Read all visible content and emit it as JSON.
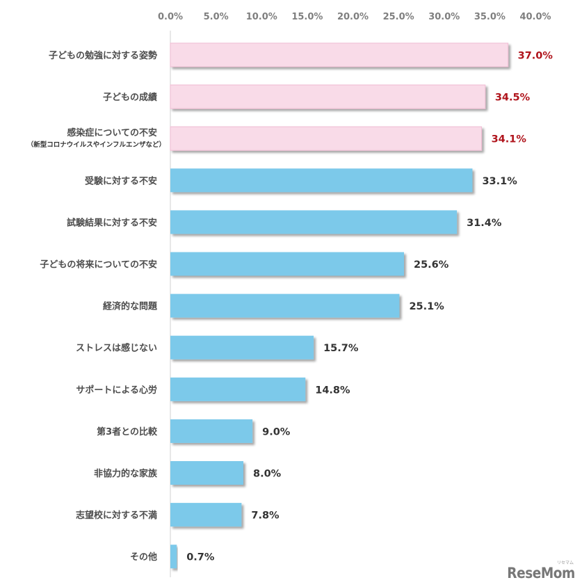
{
  "chart_data": {
    "type": "bar",
    "orientation": "horizontal",
    "xlim": [
      0,
      40
    ],
    "x_tick_labels": [
      "0.0%",
      "5.0%",
      "10.0%",
      "15.0%",
      "20.0%",
      "25.0%",
      "30.0%",
      "35.0%",
      "40.0%"
    ],
    "categories": [
      {
        "label": "子どもの勉強に対する姿勢",
        "sublabel": "",
        "value": 37.0,
        "value_label": "37.0%",
        "highlight": true
      },
      {
        "label": "子どもの成績",
        "sublabel": "",
        "value": 34.5,
        "value_label": "34.5%",
        "highlight": true
      },
      {
        "label": "感染症についての不安",
        "sublabel": "（新型コロナウイルスやインフルエンザなど）",
        "value": 34.1,
        "value_label": "34.1%",
        "highlight": true
      },
      {
        "label": "受験に対する不安",
        "sublabel": "",
        "value": 33.1,
        "value_label": "33.1%",
        "highlight": false
      },
      {
        "label": "試験結果に対する不安",
        "sublabel": "",
        "value": 31.4,
        "value_label": "31.4%",
        "highlight": false
      },
      {
        "label": "子どもの将来についての不安",
        "sublabel": "",
        "value": 25.6,
        "value_label": "25.6%",
        "highlight": false
      },
      {
        "label": "経済的な問題",
        "sublabel": "",
        "value": 25.1,
        "value_label": "25.1%",
        "highlight": false
      },
      {
        "label": "ストレスは感じない",
        "sublabel": "",
        "value": 15.7,
        "value_label": "15.7%",
        "highlight": false
      },
      {
        "label": "サポートによる心労",
        "sublabel": "",
        "value": 14.8,
        "value_label": "14.8%",
        "highlight": false
      },
      {
        "label": "第3者との比較",
        "sublabel": "",
        "value": 9.0,
        "value_label": "9.0%",
        "highlight": false
      },
      {
        "label": "非協力的な家族",
        "sublabel": "",
        "value": 8.0,
        "value_label": "8.0%",
        "highlight": false
      },
      {
        "label": "志望校に対する不満",
        "sublabel": "",
        "value": 7.8,
        "value_label": "7.8%",
        "highlight": false
      },
      {
        "label": "その他",
        "sublabel": "",
        "value": 0.7,
        "value_label": "0.7%",
        "highlight": false
      }
    ],
    "colors": {
      "highlight_bar": "#f9dbe8",
      "highlight_bar_border": "#f0bcd3",
      "normal_bar": "#7cc9ea",
      "highlight_value_text": "#b0141c",
      "normal_value_text": "#333333",
      "axis_line": "#d9d9d9"
    },
    "grid": false
  },
  "watermark": {
    "text": "ReseMom",
    "ruby": "リセマム"
  }
}
